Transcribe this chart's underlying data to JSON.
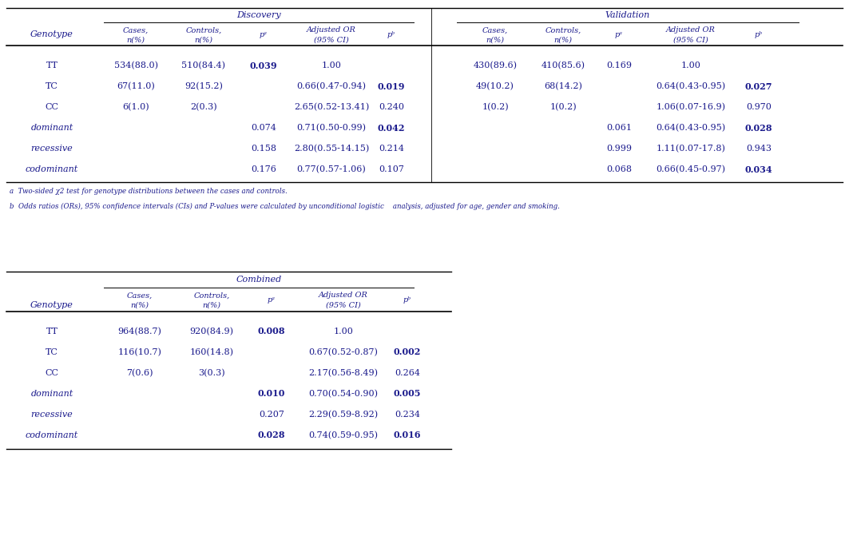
{
  "disc_header": "Discovery",
  "val_header": "Validation",
  "comb_header": "Combined",
  "disc_rows": [
    [
      "TT",
      "534(88.0)",
      "510(84.4)",
      "0.039",
      "1.00",
      ""
    ],
    [
      "TC",
      "67(11.0)",
      "92(15.2)",
      "",
      "0.66(0.47-0.94)",
      "0.019"
    ],
    [
      "CC",
      "6(1.0)",
      "2(0.3)",
      "",
      "2.65(0.52-13.41)",
      "0.240"
    ],
    [
      "dominant",
      "",
      "",
      "0.074",
      "0.71(0.50-0.99)",
      "0.042"
    ],
    [
      "recessive",
      "",
      "",
      "0.158",
      "2.80(0.55-14.15)",
      "0.214"
    ],
    [
      "codominant",
      "",
      "",
      "0.176",
      "0.77(0.57-1.06)",
      "0.107"
    ]
  ],
  "disc_bold_pa": [
    "TT"
  ],
  "disc_bold_pb": [
    "TC",
    "dominant"
  ],
  "val_rows": [
    [
      "TT",
      "430(89.6)",
      "410(85.6)",
      "0.169",
      "1.00",
      ""
    ],
    [
      "TC",
      "49(10.2)",
      "68(14.2)",
      "",
      "0.64(0.43-0.95)",
      "0.027"
    ],
    [
      "CC",
      "1(0.2)",
      "1(0.2)",
      "",
      "1.06(0.07-16.9)",
      "0.970"
    ],
    [
      "dominant",
      "",
      "",
      "0.061",
      "0.64(0.43-0.95)",
      "0.028"
    ],
    [
      "recessive",
      "",
      "",
      "0.999",
      "1.11(0.07-17.8)",
      "0.943"
    ],
    [
      "codominant",
      "",
      "",
      "0.068",
      "0.66(0.45-0.97)",
      "0.034"
    ]
  ],
  "val_bold_pb": [
    "TC",
    "dominant",
    "codominant"
  ],
  "comb_rows": [
    [
      "TT",
      "964(88.7)",
      "920(84.9)",
      "0.008",
      "1.00",
      ""
    ],
    [
      "TC",
      "116(10.7)",
      "160(14.8)",
      "",
      "0.67(0.52-0.87)",
      "0.002"
    ],
    [
      "CC",
      "7(0.6)",
      "3(0.3)",
      "",
      "2.17(0.56-8.49)",
      "0.264"
    ],
    [
      "dominant",
      "",
      "",
      "0.010",
      "0.70(0.54-0.90)",
      "0.005"
    ],
    [
      "recessive",
      "",
      "",
      "0.207",
      "2.29(0.59-8.92)",
      "0.234"
    ],
    [
      "codominant",
      "",
      "",
      "0.028",
      "0.74(0.59-0.95)",
      "0.016"
    ]
  ],
  "comb_bold_pa": [
    "TT",
    "dominant",
    "codominant"
  ],
  "comb_bold_pb": [
    "TC",
    "dominant",
    "codominant"
  ],
  "italic_genotypes": [
    "dominant",
    "recessive",
    "codominant"
  ],
  "text_color": "#1a1a8c",
  "background": "#ffffff",
  "note_a": "a  Two-sided χ2 test for genotype distributions between the cases and controls.",
  "note_b": "b  Odds ratios (ORs), 95% confidence intervals (CIs) and P-values were calculated by unconditional logistic    analysis, adjusted for age, gender and smoking."
}
